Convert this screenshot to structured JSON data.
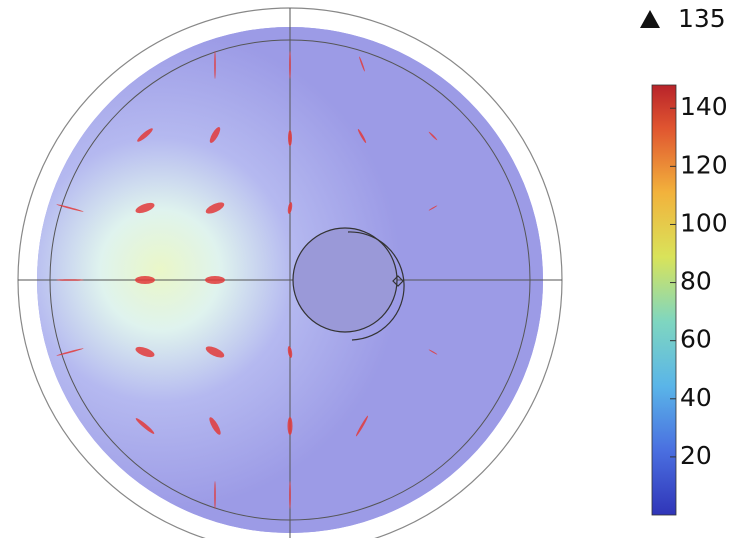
{
  "chart_data": {
    "type": "field",
    "max_value": 135,
    "clim": [
      0,
      148
    ],
    "colorbar_ticks": [
      20,
      40,
      60,
      80,
      100,
      120,
      140
    ]
  }
}
